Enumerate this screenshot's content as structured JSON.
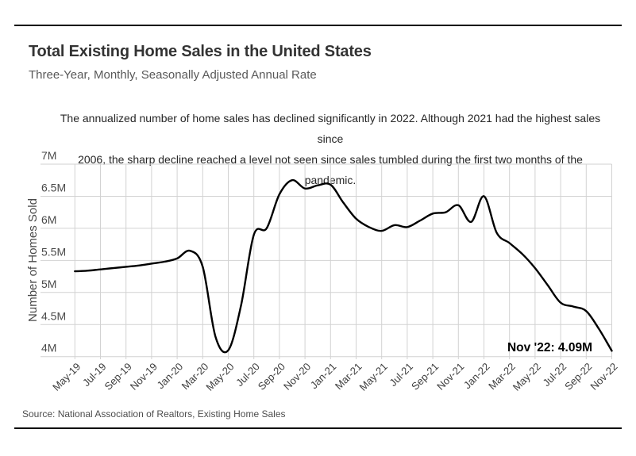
{
  "header": {
    "title": "Total Existing Home Sales in the United States",
    "subtitle": "Three-Year, Monthly, Seasonally Adjusted Annual Rate"
  },
  "annotation": {
    "line1": "The annualized number of home sales has declined significantly in 2022. Although 2021 had the highest sales since",
    "line2": "2006, the sharp decline reached a level not seen since sales tumbled during the first two months of the pandemic."
  },
  "footer": {
    "source": "Source:  National Association of Realtors, Existing Home Sales"
  },
  "colors": {
    "line": "#000000",
    "grid": "#d2d2d2",
    "axis_text": "#4a4a4a",
    "tick_text": "#3f3f3f",
    "rule": "#000000"
  },
  "chart_data": {
    "type": "line",
    "title": "Total Existing Home Sales in the United States",
    "subtitle": "Three-Year, Monthly, Seasonally Adjusted Annual Rate",
    "ylabel": "Number of Homes Sold",
    "xlabel": "",
    "ylim": [
      4,
      7
    ],
    "grid": true,
    "legend": false,
    "y_tick_labels": [
      "7M",
      "6.5M",
      "6M",
      "5.5M",
      "5M",
      "4.5M",
      "4M"
    ],
    "x_tick_labels": [
      "May-19",
      "Jul-19",
      "Sep-19",
      "Nov-19",
      "Jan-20",
      "Mar-20",
      "May-20",
      "Jul-20",
      "Sep-20",
      "Nov-20",
      "Jan-21",
      "Mar-21",
      "May-21",
      "Jul-21",
      "Sep-21",
      "Nov-21",
      "Jan-22",
      "Mar-22",
      "May-22",
      "Jul-22",
      "Sep-22",
      "Nov-22"
    ],
    "months": [
      "May-19",
      "Jun-19",
      "Jul-19",
      "Aug-19",
      "Sep-19",
      "Oct-19",
      "Nov-19",
      "Dec-19",
      "Jan-20",
      "Feb-20",
      "Mar-20",
      "Apr-20",
      "May-20",
      "Jun-20",
      "Jul-20",
      "Aug-20",
      "Sep-20",
      "Oct-20",
      "Nov-20",
      "Dec-20",
      "Jan-21",
      "Feb-21",
      "Mar-21",
      "Apr-21",
      "May-21",
      "Jun-21",
      "Jul-21",
      "Aug-21",
      "Sep-21",
      "Oct-21",
      "Nov-21",
      "Dec-21",
      "Jan-22",
      "Feb-22",
      "Mar-22",
      "Apr-22",
      "May-22",
      "Jun-22",
      "Jul-22",
      "Aug-22",
      "Sep-22",
      "Oct-22",
      "Nov-22"
    ],
    "values": [
      5.33,
      5.34,
      5.36,
      5.38,
      5.4,
      5.42,
      5.45,
      5.48,
      5.53,
      5.65,
      5.4,
      4.31,
      4.1,
      4.8,
      5.9,
      6.0,
      6.53,
      6.75,
      6.62,
      6.67,
      6.68,
      6.4,
      6.15,
      6.02,
      5.96,
      6.05,
      6.02,
      6.12,
      6.23,
      6.25,
      6.36,
      6.1,
      6.5,
      5.93,
      5.77,
      5.6,
      5.38,
      5.11,
      4.84,
      4.78,
      4.71,
      4.43,
      4.09
    ],
    "end_annotation": "Nov '22: 4.09M"
  }
}
